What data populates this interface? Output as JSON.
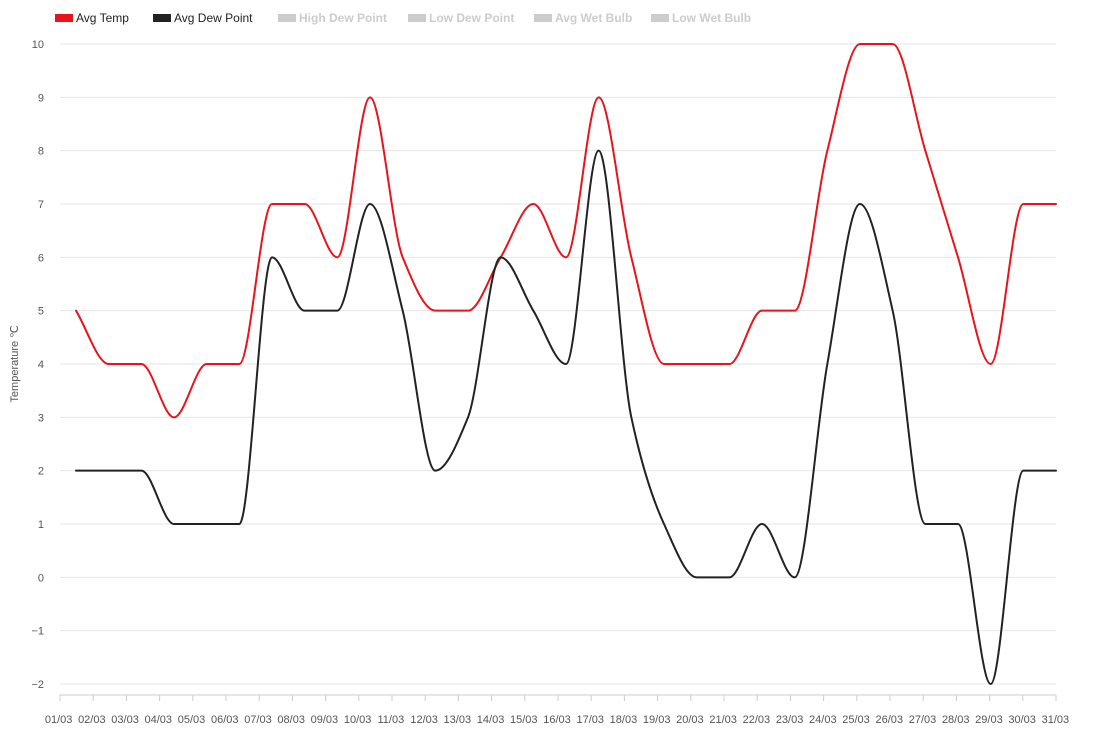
{
  "chart_data": {
    "type": "line",
    "title": "",
    "xlabel": "",
    "ylabel": "Temperature ℃",
    "ylim": [
      -2,
      10
    ],
    "y_ticks": [
      "10",
      "9",
      "8",
      "7",
      "6",
      "5",
      "4",
      "3",
      "2",
      "1",
      "0",
      "−1",
      "−2"
    ],
    "x_tick_labels": [
      "01/03",
      "02/03",
      "03/03",
      "04/03",
      "05/03",
      "06/03",
      "07/03",
      "08/03",
      "09/03",
      "10/03",
      "11/03",
      "12/03",
      "13/03",
      "14/03",
      "15/03",
      "16/03",
      "17/03",
      "18/03",
      "19/03",
      "20/03",
      "21/03",
      "22/03",
      "23/03",
      "24/03",
      "25/03",
      "26/03",
      "27/03",
      "28/03",
      "29/03",
      "30/03",
      "31/03"
    ],
    "grid": true,
    "legend": [
      {
        "name": "Avg Temp",
        "color": "#e8141c",
        "active": true
      },
      {
        "name": "Avg Dew Point",
        "color": "#222222",
        "active": true
      },
      {
        "name": "High Dew Point",
        "color": "#cccccc",
        "active": false
      },
      {
        "name": "Low Dew Point",
        "color": "#cccccc",
        "active": false
      },
      {
        "name": "Avg Wet Bulb",
        "color": "#cccccc",
        "active": false
      },
      {
        "name": "Low Wet Bulb",
        "color": "#cccccc",
        "active": false
      }
    ],
    "series": [
      {
        "name": "Avg Temp",
        "color": "#e8141c",
        "values": [
          5,
          4,
          4,
          3,
          4,
          4,
          7,
          7,
          6,
          9,
          6,
          5,
          5,
          6,
          7,
          6,
          9,
          6,
          4,
          4,
          4,
          5,
          5,
          8,
          10,
          10,
          8,
          6,
          4,
          7,
          7
        ]
      },
      {
        "name": "Avg Dew Point",
        "color": "#222222",
        "values": [
          2,
          2,
          2,
          1,
          1,
          1,
          6,
          5,
          5,
          7,
          5,
          2,
          3,
          6,
          5,
          4,
          8,
          3,
          1,
          0,
          0,
          1,
          0,
          4,
          7,
          5,
          1,
          1,
          -2,
          2,
          2
        ]
      }
    ]
  }
}
